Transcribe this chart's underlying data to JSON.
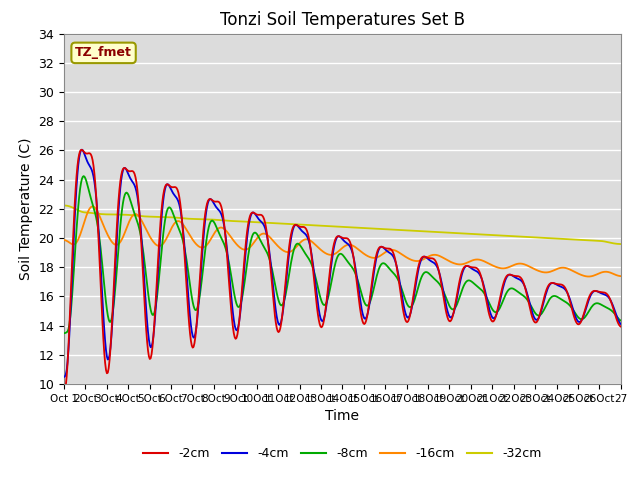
{
  "title": "Tonzi Soil Temperatures Set B",
  "xlabel": "Time",
  "ylabel": "Soil Temperature (C)",
  "ylim": [
    10,
    34
  ],
  "yticks": [
    10,
    12,
    14,
    16,
    18,
    20,
    22,
    24,
    26,
    28,
    30,
    32,
    34
  ],
  "annotation_text": "TZ_fmet",
  "annotation_color": "#8B0000",
  "annotation_bg": "#FFFFCC",
  "annotation_border": "#999900",
  "series_colors": {
    "-2cm": "#DD0000",
    "-4cm": "#0000DD",
    "-8cm": "#00AA00",
    "-16cm": "#FF8800",
    "-32cm": "#CCCC00"
  },
  "bg_color": "#DCDCDC",
  "grid_color": "#FFFFFF"
}
